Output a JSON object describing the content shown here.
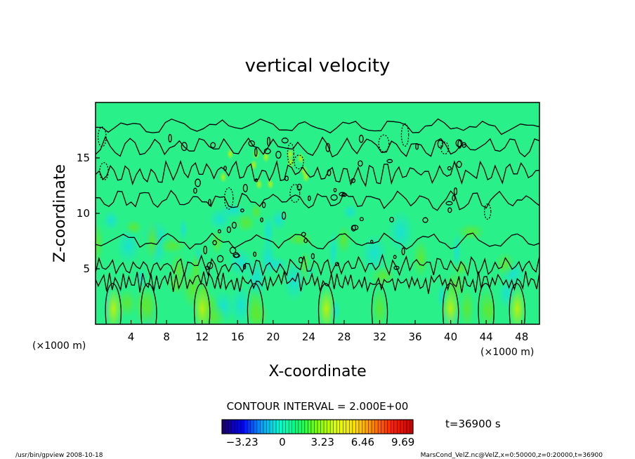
{
  "chart_data": {
    "type": "heatmap",
    "title": "vertical velocity",
    "xlabel": "X-coordinate",
    "ylabel": "Z-coordinate",
    "x_unit_left": "(×1000 m)",
    "x_unit_right": "(×1000 m)",
    "xlim": [
      0,
      50
    ],
    "ylim": [
      0,
      20
    ],
    "x_ticks": [
      4,
      8,
      12,
      16,
      20,
      24,
      28,
      32,
      36,
      40,
      44,
      48
    ],
    "y_ticks": [
      5,
      10,
      15
    ],
    "contour_interval_text": "CONTOUR INTERVAL = 2.000E+00",
    "time_text": "t=36900 s",
    "colorbar": {
      "min": -4.85,
      "max": 10.5,
      "tick_values": [
        -3.23,
        0,
        3.23,
        6.46,
        9.69
      ],
      "tick_labels": [
        "−3.23",
        "0",
        "3.23",
        "6.46",
        "9.69"
      ],
      "colors": [
        "#1a0070",
        "#0000ff",
        "#00a0ff",
        "#00ffd0",
        "#00ff70",
        "#80ff00",
        "#e0ff00",
        "#ffe000",
        "#ff8000",
        "#ff2000",
        "#d00000"
      ]
    },
    "field_base_color": "#2af08a",
    "contour_levels": [
      0,
      2
    ]
  },
  "footer": {
    "left": "/usr/bin/gpview  2008-10-18",
    "right": "MarsCond_VelZ.nc@VelZ,x=0:50000,z=0:20000,t=36900"
  }
}
